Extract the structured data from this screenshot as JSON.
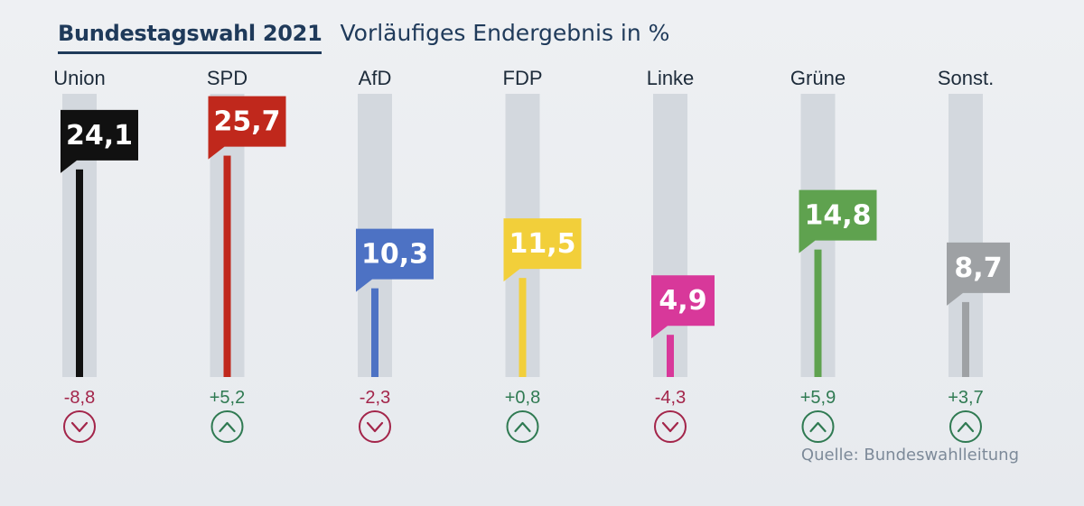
{
  "title": "Bundestagswahl 2021",
  "subtitle": "Vorläufiges Endergebnis in %",
  "source": "Quelle: Bundeswahlleitung",
  "chart_data": {
    "type": "bar",
    "title": "Bundestagswahl 2021",
    "subtitle": "Vorläufiges Endergebnis in %",
    "categories": [
      "Union",
      "SPD",
      "AfD",
      "FDP",
      "Linke",
      "Grüne",
      "Sonst."
    ],
    "values": [
      24.1,
      25.7,
      10.3,
      11.5,
      4.9,
      14.8,
      8.7
    ],
    "value_labels": [
      "24,1",
      "25,7",
      "10,3",
      "11,5",
      "4,9",
      "14,8",
      "8,7"
    ],
    "changes": [
      -8.8,
      5.2,
      -2.3,
      0.8,
      -4.3,
      5.9,
      3.7
    ],
    "change_labels": [
      "-8,8",
      "+5,2",
      "-2,3",
      "+0,8",
      "-4,3",
      "+5,9",
      "+3,7"
    ],
    "colors": [
      "#111111",
      "#c0281c",
      "#4d72c4",
      "#f2cf3a",
      "#d8389a",
      "#5fa24f",
      "#9ea1a4"
    ],
    "change_colors": {
      "up": "#2f7a52",
      "down": "#a3254a"
    },
    "ylim": [
      0,
      30
    ],
    "xlabel": "",
    "ylabel": "%"
  }
}
